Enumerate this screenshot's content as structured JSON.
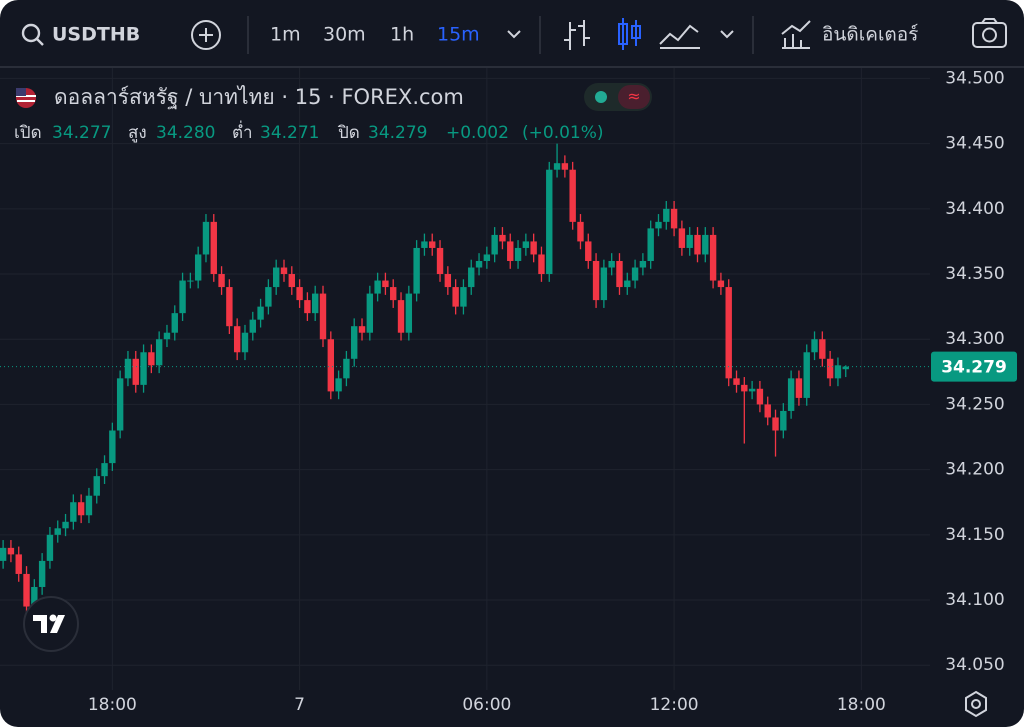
{
  "toolbar": {
    "symbol": "USDTHB",
    "intervals": [
      "1m",
      "30m",
      "1h",
      "15m"
    ],
    "indicators": "อินดิเคเตอร์"
  },
  "chart_data": {
    "type": "candlestick",
    "title": "ดอลลาร์สหรัฐ / บาทไทย · 15 · FOREX.com",
    "up_color": "#089981",
    "down_color": "#f23645",
    "grid": true,
    "header": [
      {
        "name": "เปิด",
        "value": 34.277,
        "label": "34.277"
      },
      {
        "name": "สูง",
        "value": 34.28,
        "label": "34.280"
      },
      {
        "name": "ต่ำ",
        "value": 34.271,
        "label": "34.271"
      },
      {
        "name": "ปิด",
        "value": 34.279,
        "label": "34.279"
      }
    ],
    "change": {
      "value": 0.002,
      "label": "+0.002"
    },
    "change_pct": {
      "value": 0.01,
      "label": "(+0.01%)"
    },
    "xlim": [
      14.4,
      44.2
    ],
    "xticks": [
      {
        "value": 18,
        "label": "18:00"
      },
      {
        "value": 24,
        "label": "7"
      },
      {
        "value": 30,
        "label": "06:00"
      },
      {
        "value": 36,
        "label": "12:00"
      },
      {
        "value": 42,
        "label": "18:00"
      }
    ],
    "ylim": [
      34.031,
      34.508
    ],
    "yticks": [
      {
        "value": 34.05,
        "label": "34.050"
      },
      {
        "value": 34.1,
        "label": "34.100"
      },
      {
        "value": 34.15,
        "label": "34.150"
      },
      {
        "value": 34.2,
        "label": "34.200"
      },
      {
        "value": 34.25,
        "label": "34.250"
      },
      {
        "value": 34.3,
        "label": "34.300"
      },
      {
        "value": 34.35,
        "label": "34.350"
      },
      {
        "value": 34.4,
        "label": "34.400"
      },
      {
        "value": 34.45,
        "label": "34.450"
      },
      {
        "value": 34.5,
        "label": "34.500"
      }
    ],
    "x": [
      14.5,
      14.75,
      15,
      15.25,
      15.5,
      15.75,
      16,
      16.25,
      16.5,
      16.75,
      17,
      17.25,
      17.5,
      17.75,
      18,
      18.25,
      18.5,
      18.75,
      19,
      19.25,
      19.5,
      19.75,
      20,
      20.25,
      20.5,
      20.75,
      21,
      21.25,
      21.5,
      21.75,
      22,
      22.25,
      22.5,
      22.75,
      23,
      23.25,
      23.5,
      23.75,
      24,
      24.25,
      24.5,
      24.75,
      25,
      25.25,
      25.5,
      25.75,
      26,
      26.25,
      26.5,
      26.75,
      27,
      27.25,
      27.5,
      27.75,
      28,
      28.25,
      28.5,
      28.75,
      29,
      29.25,
      29.5,
      29.75,
      30,
      30.25,
      30.5,
      30.75,
      31,
      31.25,
      31.5,
      31.75,
      32,
      32.25,
      32.5,
      32.75,
      33,
      33.25,
      33.5,
      33.75,
      34,
      34.25,
      34.5,
      34.75,
      35,
      35.25,
      35.5,
      35.75,
      36,
      36.25,
      36.5,
      36.75,
      37,
      37.25,
      37.5,
      37.75,
      38,
      38.25,
      38.5,
      38.75,
      39,
      39.25,
      39.5,
      39.75,
      40,
      40.25,
      40.5,
      40.75,
      41,
      41.25,
      41.5
    ],
    "open": [
      34.13,
      34.14,
      34.135,
      34.12,
      34.095,
      34.11,
      34.13,
      34.15,
      34.155,
      34.16,
      34.175,
      34.165,
      34.18,
      34.195,
      34.205,
      34.23,
      34.27,
      34.285,
      34.265,
      34.29,
      34.28,
      34.3,
      34.305,
      34.32,
      34.345,
      34.345,
      34.365,
      34.39,
      34.35,
      34.34,
      34.31,
      34.29,
      34.305,
      34.315,
      34.325,
      34.34,
      34.355,
      34.35,
      34.34,
      34.33,
      34.32,
      34.335,
      34.3,
      34.26,
      34.27,
      34.285,
      34.31,
      34.305,
      34.335,
      34.345,
      34.34,
      34.33,
      34.305,
      34.335,
      34.37,
      34.375,
      34.37,
      34.35,
      34.34,
      34.325,
      34.34,
      34.355,
      34.36,
      34.365,
      34.38,
      34.375,
      34.36,
      34.37,
      34.375,
      34.365,
      34.35,
      34.43,
      34.435,
      34.43,
      34.39,
      34.375,
      34.36,
      34.33,
      34.355,
      34.36,
      34.34,
      34.345,
      34.355,
      34.36,
      34.385,
      34.39,
      34.4,
      34.385,
      34.37,
      34.38,
      34.365,
      34.38,
      34.345,
      34.34,
      34.27,
      34.265,
      34.26,
      34.262,
      34.25,
      34.24,
      34.23,
      34.245,
      34.27,
      34.255,
      34.29,
      34.3,
      34.285,
      34.27,
      34.277
    ],
    "high": [
      34.146,
      34.146,
      34.141,
      34.126,
      34.116,
      34.136,
      34.156,
      34.161,
      34.166,
      34.181,
      34.181,
      34.186,
      34.201,
      34.211,
      34.236,
      34.276,
      34.291,
      34.291,
      34.296,
      34.296,
      34.306,
      34.311,
      34.326,
      34.351,
      34.351,
      34.371,
      34.396,
      34.396,
      34.356,
      34.346,
      34.316,
      34.311,
      34.321,
      34.331,
      34.346,
      34.361,
      34.361,
      34.356,
      34.346,
      34.336,
      34.341,
      34.341,
      34.306,
      34.276,
      34.291,
      34.316,
      34.316,
      34.341,
      34.351,
      34.351,
      34.346,
      34.336,
      34.341,
      34.376,
      34.381,
      34.381,
      34.376,
      34.356,
      34.346,
      34.346,
      34.361,
      34.366,
      34.371,
      34.386,
      34.386,
      34.381,
      34.376,
      34.381,
      34.381,
      34.371,
      34.436,
      34.45,
      34.441,
      34.436,
      34.396,
      34.381,
      34.366,
      34.361,
      34.366,
      34.366,
      34.351,
      34.361,
      34.366,
      34.391,
      34.396,
      34.406,
      34.406,
      34.391,
      34.386,
      34.386,
      34.386,
      34.386,
      34.351,
      34.346,
      34.276,
      34.271,
      34.268,
      34.268,
      34.256,
      34.246,
      34.251,
      34.276,
      34.276,
      34.296,
      34.306,
      34.306,
      34.291,
      34.286,
      34.28
    ],
    "low": [
      34.124,
      34.129,
      34.114,
      34.089,
      34.089,
      34.104,
      34.124,
      34.144,
      34.149,
      34.154,
      34.159,
      34.159,
      34.174,
      34.189,
      34.199,
      34.224,
      34.264,
      34.259,
      34.259,
      34.274,
      34.274,
      34.294,
      34.299,
      34.314,
      34.339,
      34.339,
      34.359,
      34.344,
      34.334,
      34.304,
      34.284,
      34.284,
      34.299,
      34.309,
      34.319,
      34.334,
      34.344,
      34.334,
      34.324,
      34.314,
      34.314,
      34.294,
      34.254,
      34.254,
      34.264,
      34.279,
      34.299,
      34.299,
      34.329,
      34.334,
      34.324,
      34.299,
      34.299,
      34.329,
      34.364,
      34.364,
      34.344,
      34.334,
      34.319,
      34.319,
      34.334,
      34.349,
      34.354,
      34.359,
      34.369,
      34.354,
      34.354,
      34.364,
      34.359,
      34.344,
      34.344,
      34.424,
      34.424,
      34.384,
      34.369,
      34.354,
      34.324,
      34.324,
      34.349,
      34.334,
      34.334,
      34.339,
      34.349,
      34.354,
      34.379,
      34.384,
      34.379,
      34.364,
      34.364,
      34.359,
      34.359,
      34.339,
      34.334,
      34.264,
      34.259,
      34.22,
      34.254,
      34.244,
      34.234,
      34.21,
      34.224,
      34.239,
      34.249,
      34.249,
      34.284,
      34.279,
      34.264,
      34.264,
      34.271
    ],
    "close": [
      34.14,
      34.135,
      34.12,
      34.095,
      34.11,
      34.13,
      34.15,
      34.155,
      34.16,
      34.175,
      34.165,
      34.18,
      34.195,
      34.205,
      34.23,
      34.27,
      34.285,
      34.265,
      34.29,
      34.28,
      34.3,
      34.305,
      34.32,
      34.345,
      34.345,
      34.365,
      34.39,
      34.35,
      34.34,
      34.31,
      34.29,
      34.305,
      34.315,
      34.325,
      34.34,
      34.355,
      34.35,
      34.34,
      34.33,
      34.32,
      34.335,
      34.3,
      34.26,
      34.27,
      34.285,
      34.31,
      34.305,
      34.335,
      34.345,
      34.34,
      34.33,
      34.305,
      34.335,
      34.37,
      34.375,
      34.37,
      34.35,
      34.34,
      34.325,
      34.34,
      34.355,
      34.36,
      34.365,
      34.38,
      34.375,
      34.36,
      34.37,
      34.375,
      34.365,
      34.35,
      34.43,
      34.435,
      34.43,
      34.39,
      34.375,
      34.36,
      34.33,
      34.355,
      34.36,
      34.34,
      34.345,
      34.355,
      34.36,
      34.385,
      34.39,
      34.4,
      34.385,
      34.37,
      34.38,
      34.365,
      34.38,
      34.345,
      34.34,
      34.27,
      34.265,
      34.26,
      34.262,
      34.25,
      34.24,
      34.23,
      34.245,
      34.27,
      34.255,
      34.29,
      34.3,
      34.285,
      34.27,
      34.28,
      34.279
    ]
  }
}
